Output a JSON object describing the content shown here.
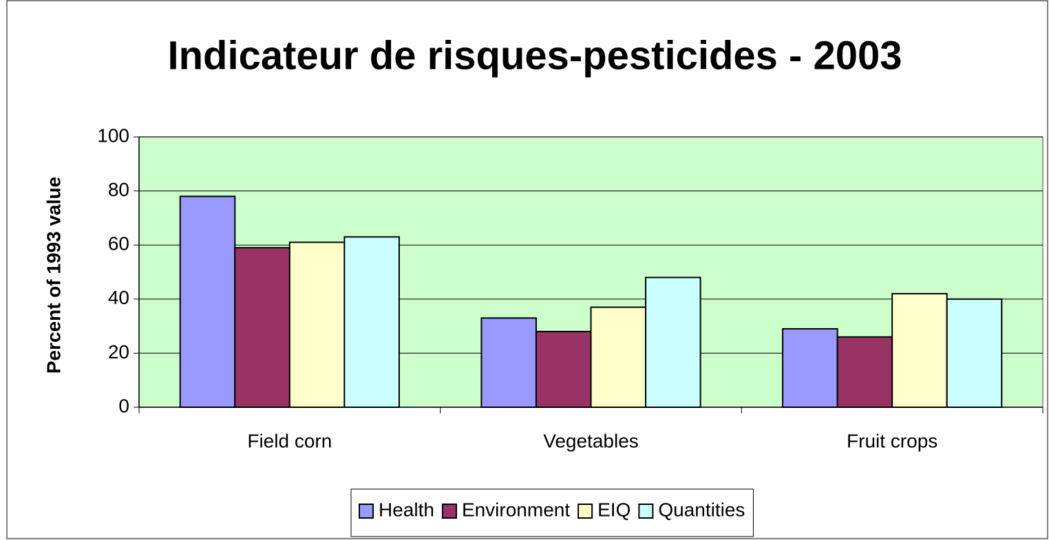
{
  "chart_data": {
    "type": "bar",
    "title": "Indicateur de risques-pesticides - 2003",
    "y_label": "Percent of 1993 value",
    "categories": [
      "Field corn",
      "Vegetables",
      "Fruit crops"
    ],
    "series": [
      {
        "name": "Health",
        "color": "#9999ff",
        "values": [
          78,
          33,
          29
        ]
      },
      {
        "name": "Environment",
        "color": "#993366",
        "values": [
          59,
          28,
          26
        ]
      },
      {
        "name": "EIQ",
        "color": "#ffffcc",
        "values": [
          61,
          37,
          42
        ]
      },
      {
        "name": "Quantities",
        "color": "#ccffff",
        "values": [
          63,
          48,
          40
        ]
      }
    ],
    "ylim": [
      0,
      100
    ],
    "yticks": [
      0,
      20,
      40,
      60,
      80,
      100
    ],
    "grid": true,
    "plot_background": "#ccffcc",
    "legend": "bottom"
  }
}
